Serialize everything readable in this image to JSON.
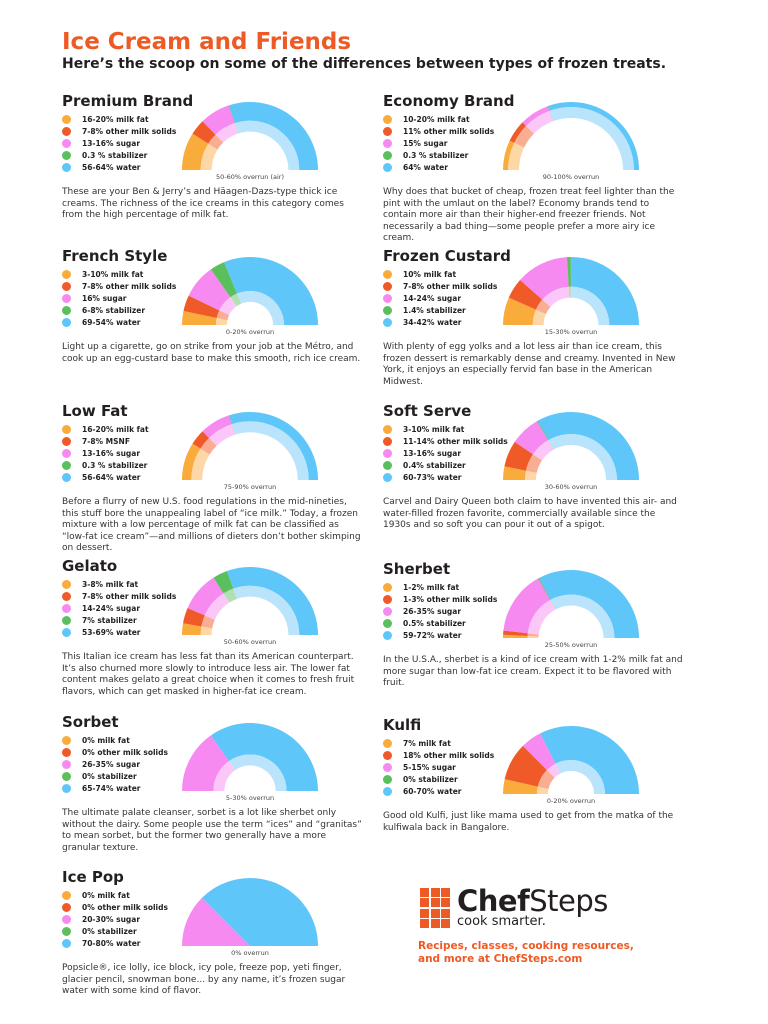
{
  "header": {
    "title": "Ice Cream and Friends",
    "subtitle": "Here’s the scoop on some of the differences between types of frozen treats."
  },
  "colors": {
    "accent": "#ee5a24",
    "milk_fat": "#f9ab3b",
    "other_milk_solids": "#f05a28",
    "sugar": "#f68af0",
    "stabilizer": "#5cbf5e",
    "water": "#5ec6f9",
    "milk_fat_pale": "#fdd7a6",
    "other_milk_solids_pale": "#f9ad92",
    "sugar_pale": "#fbc7f8",
    "stabilizer_pale": "#b1e0b2",
    "water_pale": "#b9e4fb"
  },
  "chart_data": [
    {
      "type": "pie",
      "title": "Premium Brand",
      "legend": [
        "16-20% milk fat",
        "7-8% other milk solids",
        "13-16% sugar",
        "0.3 % stabilizer",
        "56-64% water"
      ],
      "values": [
        [
          16,
          20
        ],
        [
          7,
          8
        ],
        [
          13,
          16
        ],
        [
          0.3,
          0.3
        ],
        [
          56,
          64
        ]
      ],
      "overrun_label": "50-60% overrun (air)",
      "overrun": [
        50,
        60
      ],
      "description": "These are your Ben & Jerry’s and Häagen-Dazs-type thick ice creams. The richness of the ice creams in this category comes from the high percentage of milk fat."
    },
    {
      "type": "pie",
      "title": "Economy Brand",
      "legend": [
        "10-20% milk fat",
        "11% other milk solids",
        "15% sugar",
        "0.3 % stabilizer",
        "64% water"
      ],
      "values": [
        [
          10,
          20
        ],
        [
          11,
          11
        ],
        [
          15,
          15
        ],
        [
          0.3,
          0.3
        ],
        [
          64,
          64
        ]
      ],
      "overrun_label": "90-100% overrun",
      "overrun": [
        90,
        100
      ],
      "description": "Why does that bucket of cheap, frozen treat feel lighter than the pint with the umlaut on the label? Economy brands tend to contain more air than their higher-end freezer friends. Not necessarily a bad thing—some people prefer a more airy ice cream."
    },
    {
      "type": "pie",
      "title": "French Style",
      "legend": [
        "3-10% milk fat",
        "7-8% other milk solids",
        "16% sugar",
        "6-8% stabilizer",
        "69-54% water"
      ],
      "values": [
        [
          3,
          10
        ],
        [
          7,
          8
        ],
        [
          16,
          16
        ],
        [
          6,
          8
        ],
        [
          54,
          69
        ]
      ],
      "overrun_label": "0-20% overrun",
      "overrun": [
        0,
        20
      ],
      "description": "Light up a cigarette, go on strike from your job at the Métro, and cook up an egg-custard base to make this smooth, rich ice cream."
    },
    {
      "type": "pie",
      "title": "Frozen Custard",
      "legend": [
        "10% milk fat",
        "7-8% other milk solids",
        "14-24% sugar",
        "1.4% stabilizer",
        "34-42% water"
      ],
      "values": [
        [
          10,
          10
        ],
        [
          7,
          8
        ],
        [
          14,
          24
        ],
        [
          1.4,
          1.4
        ],
        [
          34,
          42
        ]
      ],
      "overrun_label": "15-30% overrun",
      "overrun": [
        15,
        30
      ],
      "description": "With plenty of egg yolks and a lot less air than ice cream, this frozen dessert is remarkably dense and creamy. Invented in New York, it enjoys an especially fervid fan base in the American Midwest."
    },
    {
      "type": "pie",
      "title": "Low Fat",
      "legend": [
        "16-20% milk fat",
        "7-8% MSNF",
        "13-16% sugar",
        "0.3 % stabilizer",
        "56-64% water"
      ],
      "values": [
        [
          16,
          20
        ],
        [
          7,
          8
        ],
        [
          13,
          16
        ],
        [
          0.3,
          0.3
        ],
        [
          56,
          64
        ]
      ],
      "overrun_label": "75-90% overrun",
      "overrun": [
        75,
        90
      ],
      "description": "Before a flurry of new U.S. food regulations in the mid-nineties, this stuff bore the unappealing label of “ice milk.” Today, a frozen mixture with a low percentage of milk fat can be classified as “low-fat ice cream”—and millions of dieters don’t bother skimping on dessert."
    },
    {
      "type": "pie",
      "title": "Soft Serve",
      "legend": [
        "3-10% milk fat",
        "11-14% other milk solids",
        "13-16% sugar",
        "0.4% stabilizer",
        "60-73% water"
      ],
      "values": [
        [
          3,
          10
        ],
        [
          11,
          14
        ],
        [
          13,
          16
        ],
        [
          0.4,
          0.4
        ],
        [
          60,
          73
        ]
      ],
      "overrun_label": "30-60% overrun",
      "overrun": [
        30,
        60
      ],
      "description": "Carvel and Dairy Queen both claim to have invented this air- and water-filled frozen favorite, commercially available since the 1930s and so soft you can pour it out of a spigot."
    },
    {
      "type": "pie",
      "title": "Gelato",
      "legend": [
        "3-8% milk fat",
        "7-8% other milk solids",
        "14-24% sugar",
        "7% stabilizer",
        "53-69% water"
      ],
      "values": [
        [
          3,
          8
        ],
        [
          7,
          8
        ],
        [
          14,
          24
        ],
        [
          7,
          7
        ],
        [
          53,
          69
        ]
      ],
      "overrun_label": "50-60% overrun",
      "overrun": [
        50,
        60
      ],
      "description": "This Italian ice cream has less fat than its American counterpart. It’s also churned more slowly to introduce less air. The lower fat content makes gelato a great choice when it comes to fresh fruit flavors, which can get masked in higher-fat ice cream."
    },
    {
      "type": "pie",
      "title": "Sherbet",
      "legend": [
        "1-2% milk fat",
        "1-3% other milk solids",
        "26-35% sugar",
        "0.5% stabilizer",
        "59-72% water"
      ],
      "values": [
        [
          1,
          2
        ],
        [
          1,
          3
        ],
        [
          26,
          35
        ],
        [
          0.5,
          0.5
        ],
        [
          59,
          72
        ]
      ],
      "overrun_label": "25-50% overrun",
      "overrun": [
        25,
        50
      ],
      "description": "In the U.S.A., sherbet is a kind of ice cream with 1-2% milk fat and more sugar than low-fat ice cream. Expect it to be flavored with fruit."
    },
    {
      "type": "pie",
      "title": "Sorbet",
      "legend": [
        "0% milk fat",
        "0% other milk solids",
        "26-35% sugar",
        "0% stabilizer",
        "65-74% water"
      ],
      "values": [
        [
          0,
          0
        ],
        [
          0,
          0
        ],
        [
          26,
          35
        ],
        [
          0,
          0
        ],
        [
          65,
          74
        ]
      ],
      "overrun_label": "5-30% overrun",
      "overrun": [
        5,
        30
      ],
      "description": "The ultimate palate cleanser, sorbet is a lot like sherbet only without the dairy. Some people use the term “ices” and “granitas” to mean sorbet, but the former two generally have a more granular texture."
    },
    {
      "type": "pie",
      "title": "Kulfi",
      "legend": [
        "7% milk fat",
        "18% other milk solids",
        "5-15% sugar",
        "0% stabilizer",
        "60-70% water"
      ],
      "values": [
        [
          7,
          7
        ],
        [
          18,
          18
        ],
        [
          5,
          15
        ],
        [
          0,
          0
        ],
        [
          60,
          70
        ]
      ],
      "overrun_label": "0-20% overrun",
      "overrun": [
        0,
        20
      ],
      "description": "Good old Kulfi, just like mama used to get from the matka of the kulfiwala back in Bangalore."
    },
    {
      "type": "pie",
      "title": "Ice Pop",
      "legend": [
        "0% milk fat",
        "0% other milk solids",
        "20-30% sugar",
        "0% stabilizer",
        "70-80% water"
      ],
      "values": [
        [
          0,
          0
        ],
        [
          0,
          0
        ],
        [
          20,
          30
        ],
        [
          0,
          0
        ],
        [
          70,
          80
        ]
      ],
      "overrun_label": "0% overrun",
      "overrun": [
        0,
        0
      ],
      "description": "Popsicle®, ice lolly, ice block, icy pole, freeze pop, yeti finger, glacier pencil, snowman bone... by any name, it’s frozen sugar water with some kind of flavor."
    }
  ],
  "logo": {
    "brand_bold": "Chef",
    "brand_light": "Steps",
    "tagline": "cook smarter."
  },
  "promo": {
    "line1": "Recipes, classes, cooking resources,",
    "line2": "and more at ChefSteps.com"
  }
}
